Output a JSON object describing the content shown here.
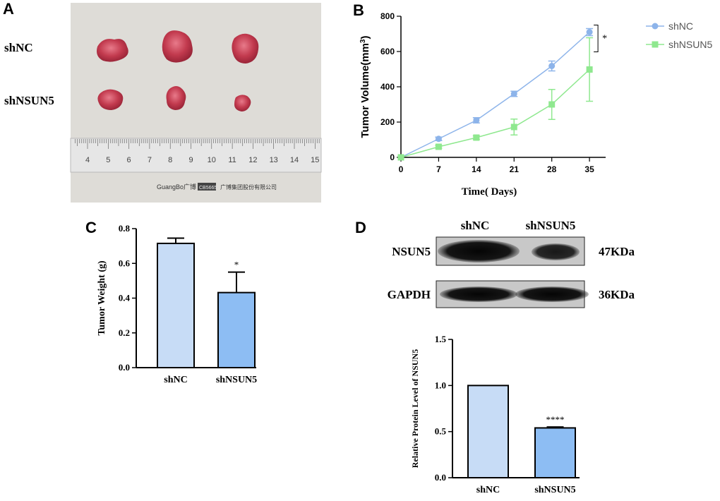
{
  "panels": {
    "a": "A",
    "b": "B",
    "c": "C",
    "d": "D"
  },
  "panel_a": {
    "row_labels": [
      "shNC",
      "shNSUN5"
    ],
    "ruler_ticks": [
      "4",
      "5",
      "6",
      "7",
      "8",
      "9",
      "10",
      "11",
      "12",
      "13",
      "14",
      "15"
    ],
    "ruler_brand": "GuangBo广博",
    "ruler_code": "CB5665",
    "ruler_company": "广博集团股份有限公司"
  },
  "western_blot": {
    "lanes": [
      "shNC",
      "shNSUN5"
    ],
    "rows": [
      {
        "protein": "NSUN5",
        "size": "47KDa"
      },
      {
        "protein": "GAPDH",
        "size": "36KDa"
      }
    ]
  },
  "colors": {
    "shNC_line": "#8db4ea",
    "shNSUN5_line": "#8fe88f",
    "bar_light": "#c7dcf6",
    "bar_dark": "#8dbdf3",
    "axis": "#000000"
  },
  "chart_data": [
    {
      "id": "tumor-volume",
      "type": "line",
      "xlabel": "Time( Days)",
      "ylabel": "Tumor Volume(mm3)",
      "ylabel_main": "Tumor Volume(mm",
      "ylabel_sup": "3",
      "ylabel_close": ")",
      "x": [
        0,
        7,
        14,
        21,
        28,
        35
      ],
      "xticks": [
        "0",
        "7",
        "14",
        "21",
        "28",
        "35"
      ],
      "yticks": [
        "0",
        "200",
        "400",
        "600",
        "800"
      ],
      "ylim": [
        0,
        800
      ],
      "xlim": [
        0,
        38
      ],
      "legend_position": "top-right",
      "significance": "*",
      "series": [
        {
          "name": "shNC",
          "values": [
            0,
            105,
            210,
            360,
            518,
            710
          ],
          "errors": [
            0,
            10,
            15,
            15,
            28,
            20
          ]
        },
        {
          "name": "shNSUN5",
          "values": [
            0,
            60,
            112,
            172,
            300,
            498
          ],
          "errors": [
            0,
            8,
            10,
            45,
            85,
            180
          ]
        }
      ]
    },
    {
      "id": "tumor-weight",
      "type": "bar",
      "categories": [
        "shNC",
        "shNSUN5"
      ],
      "values": [
        0.715,
        0.432
      ],
      "errors": [
        0.03,
        0.118
      ],
      "annotations": [
        "",
        "*"
      ],
      "ylabel": "Tumor Weight (g)",
      "yticks": [
        "0.0",
        "0.2",
        "0.4",
        "0.6",
        "0.8"
      ],
      "ylim": [
        0,
        0.8
      ]
    },
    {
      "id": "relative-protein",
      "type": "bar",
      "categories": [
        "shNC",
        "shNSUN5"
      ],
      "values": [
        1.0,
        0.54
      ],
      "errors": [
        0,
        0.01
      ],
      "annotations": [
        "",
        "****"
      ],
      "ylabel": "Relative Protein Level of NSUN5",
      "yticks": [
        "0.0",
        "0.5",
        "1.0",
        "1.5"
      ],
      "ylim": [
        0,
        1.5
      ]
    }
  ]
}
